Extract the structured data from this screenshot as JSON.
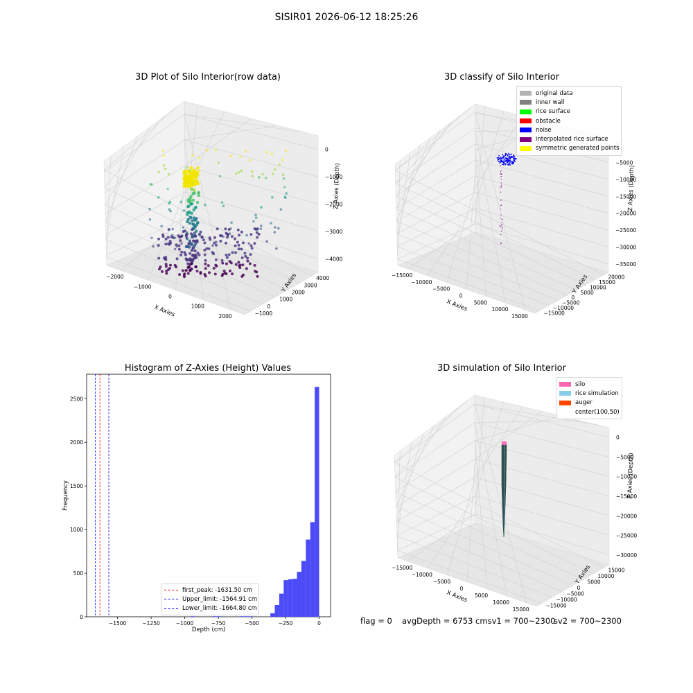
{
  "figure": {
    "suptitle": "SISIR01 2026-06-12 18:25:26"
  },
  "chart_data": [
    {
      "type": "scatter",
      "projection": "3d",
      "title": "3D Plot of Silo Interior(row data)",
      "xlabel": "X Axies",
      "ylabel": "Y Axies",
      "zlabel": "Z Axies (Depth)",
      "x_ticks": [
        "−2000",
        "−1000",
        "0",
        "1000",
        "2000"
      ],
      "y_ticks": [
        "−1000",
        "0",
        "1000",
        "2000",
        "3000",
        "4000"
      ],
      "z_ticks": [
        "0",
        "−1000",
        "−2000",
        "−3000",
        "−4000"
      ],
      "xlim": [
        -2700,
        2700
      ],
      "ylim": [
        -1000,
        4500
      ],
      "zlim": [
        -4600,
        200
      ],
      "colormap": "viridis",
      "grid": true
    },
    {
      "type": "scatter",
      "projection": "3d",
      "title": "3D classify of Silo Interior",
      "xlabel": "X Axies",
      "ylabel": "Y Axies",
      "zlabel": "Z Axies (Depth)",
      "x_ticks": [
        "−15000",
        "−10000",
        "−5000",
        "0",
        "5000",
        "10000",
        "15000"
      ],
      "y_ticks": [
        "−15000",
        "−10000",
        "−5000",
        "0",
        "5000",
        "10000",
        "15000",
        "20000"
      ],
      "z_ticks": [
        "0",
        "−5000",
        "−10000",
        "−15000",
        "−20000",
        "−25000",
        "−30000",
        "−35000"
      ],
      "legend_position": "top-right",
      "grid": true,
      "classes": [
        {
          "name": "original data",
          "color": "#b3b3b3"
        },
        {
          "name": "inner wall",
          "color": "#808080"
        },
        {
          "name": "rice surface",
          "color": "#00ff00"
        },
        {
          "name": "obstacle",
          "color": "#ff0000"
        },
        {
          "name": "noise",
          "color": "#0000ff"
        },
        {
          "name": "interpolated rice surface",
          "color": "#800080"
        },
        {
          "name": "symmetric generated points",
          "color": "#ffff00"
        }
      ]
    },
    {
      "type": "bar",
      "title": "Histogram of Z-Axies (Height) Values",
      "xlabel": "Depth (cm)",
      "ylabel": "Frequency",
      "xlim": [
        -1730,
        85
      ],
      "ylim": [
        0,
        2780
      ],
      "x_ticks": [
        -1500,
        -1250,
        -1000,
        -750,
        -500,
        -250,
        0
      ],
      "x_tick_labels": [
        "−1500",
        "−1250",
        "−1000",
        "−750",
        "−500",
        "−250",
        "0"
      ],
      "y_ticks": [
        0,
        500,
        1000,
        1500,
        2000,
        2500
      ],
      "bar_color": "#4b4bf7",
      "bin_width": 33,
      "bins": [
        {
          "x": -957,
          "count": 6
        },
        {
          "x": -792,
          "count": 6
        },
        {
          "x": -759,
          "count": 6
        },
        {
          "x": -594,
          "count": 6
        },
        {
          "x": -561,
          "count": 6
        },
        {
          "x": -528,
          "count": 6
        },
        {
          "x": -363,
          "count": 40
        },
        {
          "x": -330,
          "count": 135
        },
        {
          "x": -297,
          "count": 265
        },
        {
          "x": -264,
          "count": 420
        },
        {
          "x": -231,
          "count": 430
        },
        {
          "x": -198,
          "count": 435
        },
        {
          "x": -165,
          "count": 515
        },
        {
          "x": -132,
          "count": 640
        },
        {
          "x": -99,
          "count": 885
        },
        {
          "x": -66,
          "count": 1085
        },
        {
          "x": -33,
          "count": 2635
        }
      ],
      "vlines": [
        {
          "label": "first_peak: -1631.50 cm",
          "x": -1631.5,
          "color": "#ff0000"
        },
        {
          "label": "Upper_limit: -1564.91 cm",
          "x": -1564.91,
          "color": "#0000ff"
        },
        {
          "label": "Lower_limit: -1664.80 cm",
          "x": -1664.8,
          "color": "#0000ff"
        }
      ],
      "legend_position": "lower-right"
    },
    {
      "type": "surface",
      "projection": "3d",
      "title": "3D simulation of Silo Interior",
      "xlabel": "X Axies",
      "ylabel": "Y Axies",
      "zlabel": "Z Axies (Depth)",
      "x_ticks": [
        "−15000",
        "−10000",
        "−5000",
        "0",
        "5000",
        "10000",
        "15000"
      ],
      "y_ticks": [
        "−15000",
        "−10000",
        "−5000",
        "0",
        "5000",
        "10000",
        "15000"
      ],
      "z_ticks": [
        "0",
        "−5000",
        "−10000",
        "−15000",
        "−20000",
        "−25000",
        "−30000"
      ],
      "legend_position": "top-right",
      "grid": true,
      "legend": [
        {
          "name": "silo",
          "color": "#ff69b4"
        },
        {
          "name": "rice simulation",
          "color": "#87ceeb"
        },
        {
          "name": "auger",
          "color": "#ff4500"
        },
        {
          "name": "center(100,50)",
          "color": ""
        }
      ]
    }
  ],
  "status": {
    "flag": "flag = 0",
    "avg": "avgDepth = 6753 cmsv1 = 700~2300",
    "sv2": "sv2 = 700~2300"
  }
}
